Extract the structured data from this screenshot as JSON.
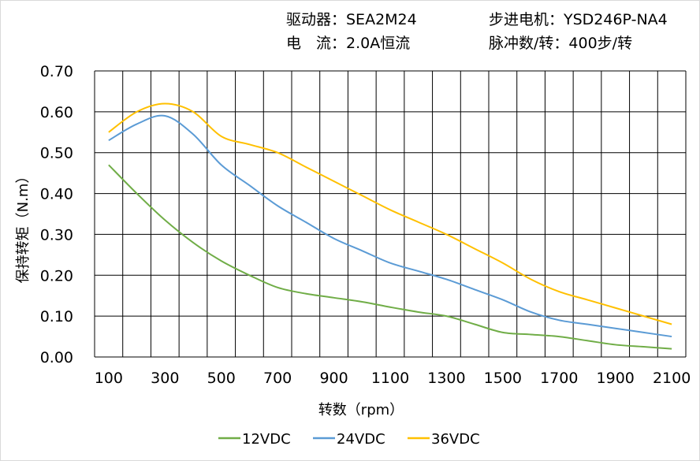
{
  "header": {
    "driver": "驱动器：SEA2M24",
    "current": "电　流：2.0A恒流",
    "motor": "步进电机：YSD246P-NA4",
    "pulses": "脉冲数/转：400步/转"
  },
  "chart_data": {
    "type": "line",
    "title": "",
    "xlabel": "转数（rpm）",
    "ylabel": "保持转矩（N.m）",
    "xlim": [
      50,
      2150
    ],
    "ylim": [
      0,
      0.7
    ],
    "grid": true,
    "legend_position": "bottom",
    "x_ticks": [
      100,
      300,
      500,
      700,
      900,
      1100,
      1300,
      1500,
      1700,
      1900,
      2100
    ],
    "x_tick_labels": [
      "100",
      "300",
      "500",
      "700",
      "900",
      "1100",
      "1300",
      "1500",
      "1700",
      "1900",
      "2100"
    ],
    "y_ticks": [
      0,
      0.1,
      0.2,
      0.3,
      0.4,
      0.5,
      0.6,
      0.7
    ],
    "y_tick_labels": [
      "0.00",
      "0.10",
      "0.20",
      "0.30",
      "0.40",
      "0.50",
      "0.60",
      "0.70"
    ],
    "x": [
      100,
      200,
      300,
      400,
      500,
      600,
      700,
      800,
      900,
      1000,
      1100,
      1200,
      1300,
      1400,
      1500,
      1600,
      1700,
      1800,
      1900,
      2000,
      2100
    ],
    "series": [
      {
        "name": "12VDC",
        "color": "#70ad47",
        "values": [
          0.47,
          0.4,
          0.335,
          0.28,
          0.235,
          0.2,
          0.17,
          0.155,
          0.145,
          0.135,
          0.122,
          0.11,
          0.1,
          0.08,
          0.06,
          0.055,
          0.05,
          0.04,
          0.03,
          0.025,
          0.02
        ]
      },
      {
        "name": "24VDC",
        "color": "#5b9bd5",
        "values": [
          0.53,
          0.57,
          0.59,
          0.545,
          0.47,
          0.42,
          0.37,
          0.33,
          0.29,
          0.26,
          0.23,
          0.21,
          0.19,
          0.165,
          0.14,
          0.11,
          0.09,
          0.08,
          0.07,
          0.06,
          0.05
        ]
      },
      {
        "name": "36VDC",
        "color": "#ffc000",
        "values": [
          0.55,
          0.6,
          0.62,
          0.6,
          0.54,
          0.52,
          0.5,
          0.465,
          0.43,
          0.395,
          0.36,
          0.33,
          0.3,
          0.265,
          0.23,
          0.19,
          0.16,
          0.14,
          0.12,
          0.1,
          0.08
        ]
      }
    ]
  }
}
